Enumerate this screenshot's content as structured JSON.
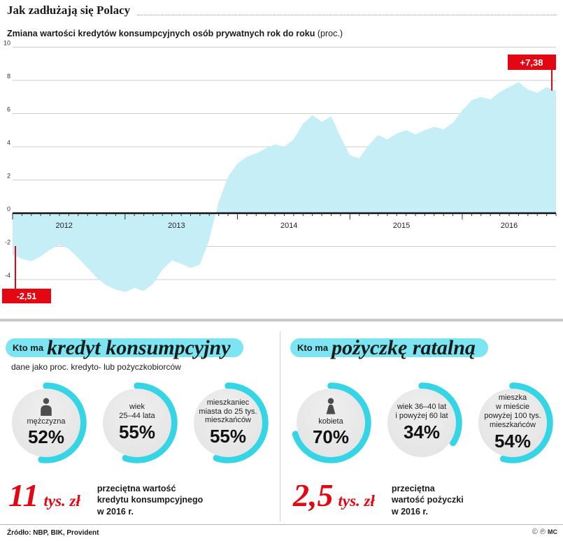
{
  "page": {
    "title": "Jak zadłużają się Polacy",
    "subtitle_bold": "Zmiana wartości kredytów konsumpcyjnych osób prywatnych rok do roku",
    "subtitle_normal": "(proc.)",
    "source": "Źródło: NBP, BIK, Provident",
    "footer_icon_c": "©",
    "footer_icon_p": "℗",
    "footer_mark": "MC"
  },
  "colors": {
    "area": "#c6eef7",
    "accent": "#35d5e6",
    "highlight": "#7ce5f1",
    "red": "#e30613",
    "grid": "#cccccc",
    "axis": "#111111",
    "circle_bg": "#e8e8e8"
  },
  "chart_data": {
    "type": "area",
    "title": "Zmiana wartości kredytów konsumpcyjnych osób prywatnych rok do roku (proc.)",
    "unit": "proc.",
    "x_start": "2012-01",
    "x_step": "month",
    "year_labels": [
      "2012",
      "2013",
      "2014",
      "2015",
      "2016"
    ],
    "yticks": [
      10,
      8,
      6,
      4,
      2,
      0,
      -2,
      -4
    ],
    "ylim": [
      -5,
      10
    ],
    "grid": true,
    "values": [
      -2.51,
      -2.75,
      -2.9,
      -2.6,
      -2.2,
      -1.9,
      -2.15,
      -2.7,
      -3.3,
      -3.9,
      -4.35,
      -4.6,
      -4.75,
      -4.5,
      -4.7,
      -4.25,
      -3.4,
      -2.85,
      -3.05,
      -3.3,
      -3.1,
      -1.6,
      0.7,
      2.2,
      3.0,
      3.4,
      3.6,
      3.9,
      4.15,
      4.0,
      4.45,
      5.4,
      5.9,
      5.5,
      5.85,
      4.6,
      3.5,
      3.3,
      4.1,
      4.7,
      4.45,
      4.8,
      5.0,
      4.75,
      5.0,
      5.2,
      5.05,
      5.45,
      6.2,
      6.8,
      7.0,
      6.85,
      7.3,
      7.6,
      7.9,
      7.45,
      7.25,
      7.6,
      7.38
    ],
    "first_value": -2.51,
    "last_value": 7.38,
    "first_label": "-2,51",
    "last_label": "+7,38"
  },
  "sections": [
    {
      "kicker": "Kto ma",
      "title": "kredyt konsumpcyjny",
      "subtitle": "dane jako proc. kredyto- lub pożyczkobiorców",
      "stats": [
        {
          "icon": "male",
          "label_lines": [
            "mężczyzna"
          ],
          "value": 52,
          "value_label": "52%"
        },
        {
          "icon": null,
          "label_lines": [
            "wiek",
            "25–44 lata"
          ],
          "value": 55,
          "value_label": "55%"
        },
        {
          "icon": null,
          "label_lines": [
            "mieszkaniec",
            "miasta do 25 tys.",
            "mieszkańców"
          ],
          "value": 55,
          "value_label": "55%"
        }
      ],
      "amount": "11",
      "amount_unit": "tys. zł",
      "amount_desc_lines": [
        "przeciętna wartość",
        "kredytu konsumpcyjnego",
        "w 2016 r."
      ]
    },
    {
      "kicker": "Kto ma",
      "title": "pożyczkę ratalną",
      "subtitle": "",
      "stats": [
        {
          "icon": "female",
          "label_lines": [
            "kobieta"
          ],
          "value": 70,
          "value_label": "70%"
        },
        {
          "icon": null,
          "label_lines": [
            "wiek 36–40 lat",
            "i powyżej 60 lat"
          ],
          "value": 34,
          "value_label": "34%"
        },
        {
          "icon": null,
          "label_lines": [
            "mieszka",
            "w mieście",
            "powyżej 100 tys.",
            "mieszkańców"
          ],
          "value": 54,
          "value_label": "54%"
        }
      ],
      "amount": "2,5",
      "amount_unit": "tys. zł",
      "amount_desc_lines": [
        "przeciętna",
        "wartość pożyczki",
        "w 2016 r."
      ]
    }
  ]
}
